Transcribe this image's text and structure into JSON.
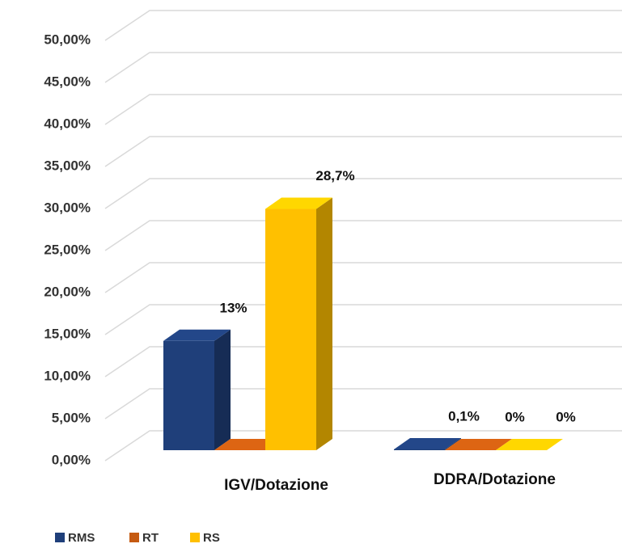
{
  "chart_data": {
    "type": "bar3d",
    "categories": [
      "IGV/Dotazione",
      "DDRA/Dotazione"
    ],
    "series": [
      {
        "name": "RMS",
        "color": "#1f3f7a",
        "values": [
          13,
          0.1
        ],
        "value_labels": [
          "13%",
          "0,1%"
        ]
      },
      {
        "name": "RT",
        "color": "#c55a11",
        "values": [
          0,
          0
        ],
        "value_labels": [
          "0%",
          "0%"
        ]
      },
      {
        "name": "RS",
        "color": "#ffc000",
        "values": [
          28.7,
          0
        ],
        "value_labels": [
          "28,7%",
          "0%"
        ]
      }
    ],
    "ylim": [
      0,
      50
    ],
    "yticks": [
      {
        "value": 0,
        "label": "0,00%"
      },
      {
        "value": 5,
        "label": "5,00%"
      },
      {
        "value": 10,
        "label": "10,00%"
      },
      {
        "value": 15,
        "label": "15,00%"
      },
      {
        "value": 20,
        "label": "20,00%"
      },
      {
        "value": 25,
        "label": "25,00%"
      },
      {
        "value": 30,
        "label": "30,00%"
      },
      {
        "value": 35,
        "label": "35,00%"
      },
      {
        "value": 40,
        "label": "40,00%"
      },
      {
        "value": 45,
        "label": "45,00%"
      },
      {
        "value": 50,
        "label": "50,00%"
      }
    ],
    "grid": true,
    "legend": "bottom-left"
  }
}
